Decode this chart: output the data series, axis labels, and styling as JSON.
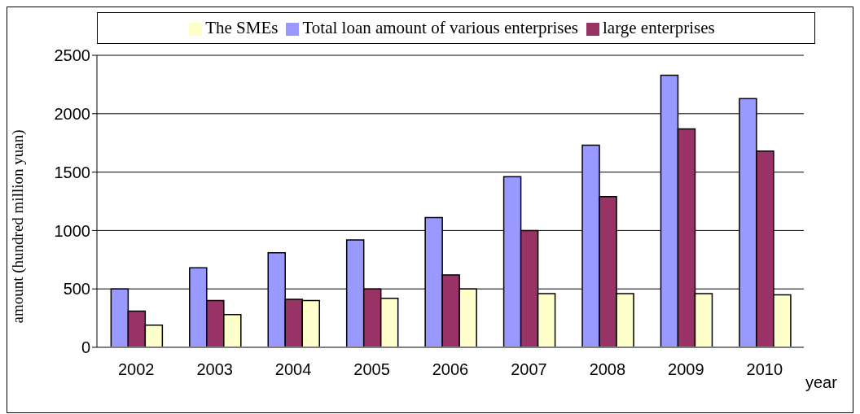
{
  "chart_data": {
    "type": "bar",
    "xlabel": "year",
    "ylabel": "amount (hundred million yuan)",
    "categories": [
      "2002",
      "2003",
      "2004",
      "2005",
      "2006",
      "2007",
      "2008",
      "2009",
      "2010"
    ],
    "series": [
      {
        "name": "Total loan amount of various enterprises",
        "color": "#9999ff",
        "values": [
          500,
          680,
          810,
          920,
          1110,
          1460,
          1730,
          2330,
          2130
        ]
      },
      {
        "name": "large enterprises",
        "color": "#993366",
        "values": [
          310,
          400,
          410,
          500,
          620,
          1000,
          1290,
          1870,
          1680
        ]
      },
      {
        "name": "The SMEs",
        "color": "#ffffcc",
        "values": [
          190,
          280,
          400,
          420,
          500,
          460,
          460,
          460,
          450
        ]
      }
    ],
    "ylim": [
      0,
      2500
    ],
    "yticks": [
      0,
      500,
      1000,
      1500,
      2000,
      2500
    ],
    "grid": "y",
    "legend": "top"
  }
}
